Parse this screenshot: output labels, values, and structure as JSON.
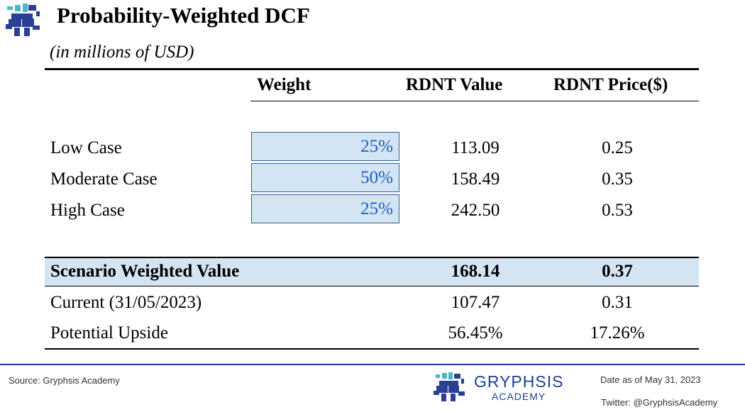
{
  "title": "Probability-Weighted DCF",
  "subtitle": "(in millions of USD)",
  "table": {
    "headers": {
      "weight": "Weight",
      "value": "RDNT Value",
      "price": "RDNT Price($)"
    },
    "scenarios": [
      {
        "label": "Low Case",
        "weight": "25%",
        "value": "113.09",
        "price": "0.25"
      },
      {
        "label": "Moderate Case",
        "weight": "50%",
        "value": "158.49",
        "price": "0.35"
      },
      {
        "label": "High Case",
        "weight": "25%",
        "value": "242.50",
        "price": "0.53"
      }
    ],
    "summary": {
      "label": "Scenario Weighted Value",
      "value": "168.14",
      "price": "0.37"
    },
    "current": {
      "label": "Current  (31/05/2023)",
      "value": "107.47",
      "price": "0.31"
    },
    "upside": {
      "label": "Potential Upside",
      "value": "56.45%",
      "price": "17.26%"
    }
  },
  "footer": {
    "source": "Source: Gryphsis Academy",
    "brand": "GRYPHSIS",
    "brand_sub": "ACADEMY",
    "date": "Date as of May 31, 2023",
    "twitter": "Twitter: @GryphsisAcademy"
  },
  "colors": {
    "highlight": "#d3e4f3",
    "weight_text": "#1f5fc4",
    "brand": "#203f8f"
  },
  "icons": {
    "top_logo": "gryphon-logo-icon",
    "footer_logo": "gryphon-logo-icon"
  }
}
